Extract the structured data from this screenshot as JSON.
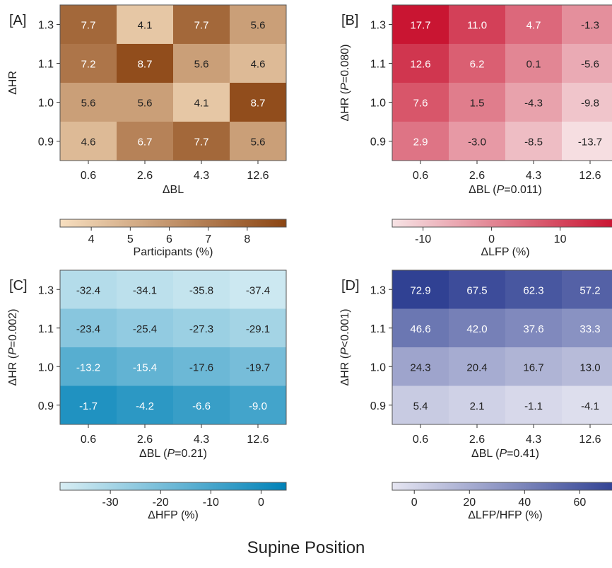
{
  "figure": {
    "caption": "Supine Position"
  },
  "chart_data": [
    {
      "type": "heatmap",
      "panel_label": "[A]",
      "xlabel": "ΔBL",
      "ylabel": "ΔHR",
      "x_categories": [
        "0.6",
        "2.6",
        "4.3",
        "12.6"
      ],
      "y_categories": [
        "1.3",
        "1.1",
        "1.0",
        "0.9"
      ],
      "values": [
        [
          7.7,
          4.1,
          7.7,
          5.6
        ],
        [
          7.2,
          8.7,
          5.6,
          4.6
        ],
        [
          5.6,
          5.6,
          4.1,
          8.7
        ],
        [
          4.6,
          6.7,
          7.7,
          5.6
        ]
      ],
      "labels": [
        [
          "7.7",
          "4.1",
          "7.7",
          "5.6"
        ],
        [
          "7.2",
          "8.7",
          "5.6",
          "4.6"
        ],
        [
          "5.6",
          "5.6",
          "4.1",
          "8.7"
        ],
        [
          "4.6",
          "6.7",
          "7.7",
          "5.6"
        ]
      ],
      "colorbar": {
        "label": "Participants (%)",
        "range": [
          3.2,
          9.0
        ],
        "ticks": [
          4,
          5,
          6,
          7,
          8
        ],
        "tick_labels": [
          "4",
          "5",
          "6",
          "7",
          "8"
        ],
        "colors": [
          "#f7dfc0",
          "#8b4513"
        ]
      }
    },
    {
      "type": "heatmap",
      "panel_label": "[B]",
      "xlabel": "ΔBL (P=0.011)",
      "ylabel": "ΔHR (P=0.080)",
      "x_categories": [
        "0.6",
        "2.6",
        "4.3",
        "12.6"
      ],
      "y_categories": [
        "1.3",
        "1.1",
        "1.0",
        "0.9"
      ],
      "values": [
        [
          17.7,
          11.0,
          4.7,
          -1.3
        ],
        [
          12.6,
          6.2,
          0.1,
          -5.6
        ],
        [
          7.6,
          1.5,
          -4.3,
          -9.8
        ],
        [
          2.9,
          -3.0,
          -8.5,
          -13.7
        ]
      ],
      "labels": [
        [
          "17.7",
          "11.0",
          "4.7",
          "-1.3"
        ],
        [
          "12.6",
          "6.2",
          "0.1",
          "-5.6"
        ],
        [
          "7.6",
          "1.5",
          "-4.3",
          "-9.8"
        ],
        [
          "2.9",
          "-3.0",
          "-8.5",
          "-13.7"
        ]
      ],
      "colorbar": {
        "label": "ΔLFP (%)",
        "range": [
          -14.5,
          18.5
        ],
        "ticks": [
          -10,
          0,
          10
        ],
        "tick_labels": [
          "-10",
          "0",
          "10"
        ],
        "colors": [
          "#f7e3e5",
          "#c8102e"
        ]
      }
    },
    {
      "type": "heatmap",
      "panel_label": "[C]",
      "xlabel": "ΔBL (P=0.21)",
      "ylabel": "ΔHR (P=0.002)",
      "x_categories": [
        "0.6",
        "2.6",
        "4.3",
        "12.6"
      ],
      "y_categories": [
        "1.3",
        "1.1",
        "1.0",
        "0.9"
      ],
      "values": [
        [
          -32.4,
          -34.1,
          -35.8,
          -37.4
        ],
        [
          -23.4,
          -25.4,
          -27.3,
          -29.1
        ],
        [
          -13.2,
          -15.4,
          -17.6,
          -19.7
        ],
        [
          -1.7,
          -4.2,
          -6.6,
          -9.0
        ]
      ],
      "labels": [
        [
          "-32.4",
          "-34.1",
          "-35.8",
          "-37.4"
        ],
        [
          "-23.4",
          "-25.4",
          "-27.3",
          "-29.1"
        ],
        [
          "-13.2",
          "-15.4",
          "-17.6",
          "-19.7"
        ],
        [
          "-1.7",
          "-4.2",
          "-6.6",
          "-9.0"
        ]
      ],
      "colorbar": {
        "label": "ΔHFP (%)",
        "range": [
          -40,
          5
        ],
        "ticks": [
          -30,
          -20,
          -10,
          0
        ],
        "tick_labels": [
          "-30",
          "-20",
          "-10",
          "0"
        ],
        "colors": [
          "#d8eef4",
          "#0082b8"
        ]
      }
    },
    {
      "type": "heatmap",
      "panel_label": "[D]",
      "xlabel": "ΔBL (P=0.41)",
      "ylabel": "ΔHR (P<0.001)",
      "x_categories": [
        "0.6",
        "2.6",
        "4.3",
        "12.6"
      ],
      "y_categories": [
        "1.3",
        "1.1",
        "1.0",
        "0.9"
      ],
      "values": [
        [
          72.9,
          67.5,
          62.3,
          57.2
        ],
        [
          46.6,
          42.0,
          37.6,
          33.3
        ],
        [
          24.3,
          20.4,
          16.7,
          13.0
        ],
        [
          5.4,
          2.1,
          -1.1,
          -4.1
        ]
      ],
      "labels": [
        [
          "72.9",
          "67.5",
          "62.3",
          "57.2"
        ],
        [
          "46.6",
          "42.0",
          "37.6",
          "33.3"
        ],
        [
          "24.3",
          "20.4",
          "16.7",
          "13.0"
        ],
        [
          "5.4",
          "2.1",
          "-1.1",
          "-4.1"
        ]
      ],
      "colorbar": {
        "label": "ΔLFP/HFP (%)",
        "range": [
          -8,
          74
        ],
        "ticks": [
          0,
          20,
          40,
          60
        ],
        "tick_labels": [
          "0",
          "20",
          "40",
          "60"
        ],
        "colors": [
          "#e6e6f2",
          "#2e3f92"
        ]
      }
    }
  ]
}
